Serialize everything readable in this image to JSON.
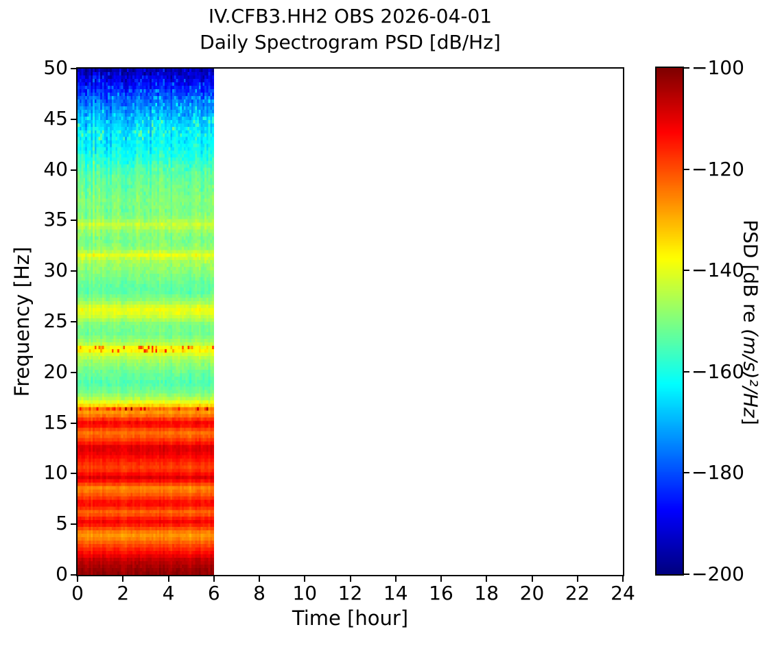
{
  "chart_data": {
    "type": "heatmap",
    "subtype": "spectrogram",
    "title_line1": "IV.CFB3.HH2 OBS 2026-04-01",
    "title_line2": "Daily Spectrogram PSD [dB/Hz]",
    "xlabel": "Time [hour]",
    "ylabel": "Frequency [Hz]",
    "xlim": [
      0,
      24
    ],
    "ylim": [
      0,
      50
    ],
    "xticks": [
      0,
      2,
      4,
      6,
      8,
      10,
      12,
      14,
      16,
      18,
      20,
      22,
      24
    ],
    "yticks": [
      0,
      5,
      10,
      15,
      20,
      25,
      30,
      35,
      40,
      45,
      50
    ],
    "grid": false,
    "colormap": "jet",
    "data_coverage_hours": [
      0,
      6
    ],
    "no_data_hours": [
      6,
      24
    ],
    "time_columns": 72,
    "freq_rows": 148,
    "colorbar": {
      "label_prefix": "PSD [dB re ",
      "label_math": "(m/s)²/Hz",
      "label_suffix": "]",
      "vmin": -200,
      "vmax": -100,
      "ticks": [
        -100,
        -120,
        -140,
        -160,
        -180,
        -200
      ]
    },
    "psd_profile": {
      "description": "Mean PSD [dB] vs frequency [Hz] of the 0-6 h data block, estimated from the colors",
      "freq_hz": [
        0,
        0.5,
        1,
        1.5,
        2,
        2.5,
        3,
        3.5,
        4,
        4.5,
        5,
        5.3,
        5.8,
        6.2,
        6.7,
        7.1,
        7.6,
        8.1,
        8.6,
        9.1,
        9.6,
        10,
        10.5,
        11,
        11.5,
        12,
        12.6,
        13.1,
        13.6,
        14.1,
        14.6,
        14.9,
        15.3,
        15.7,
        16.1,
        16.4,
        16.8,
        17.3,
        18,
        19,
        20,
        21,
        21.7,
        22.3,
        22.9,
        23.8,
        24.8,
        25.7,
        26.3,
        27,
        28,
        29,
        30,
        31,
        31.6,
        32.2,
        33,
        34,
        34.6,
        35.2,
        36,
        37,
        38,
        39,
        40,
        41,
        42,
        43,
        44,
        45,
        46,
        47,
        48,
        49,
        50
      ],
      "psd_db": [
        -102,
        -103,
        -105,
        -107,
        -112,
        -116,
        -120,
        -125,
        -128,
        -121,
        -114,
        -112,
        -119,
        -123,
        -116,
        -112,
        -118,
        -123,
        -126,
        -117,
        -109,
        -114,
        -119,
        -117,
        -114,
        -111,
        -109,
        -116,
        -121,
        -124,
        -116,
        -111,
        -117,
        -124,
        -128,
        -124,
        -136,
        -144,
        -151,
        -155,
        -152,
        -148,
        -143,
        -136,
        -146,
        -152,
        -150,
        -141,
        -139,
        -148,
        -154,
        -152,
        -149,
        -146,
        -140,
        -148,
        -151,
        -148,
        -143,
        -149,
        -151,
        -150,
        -152,
        -153,
        -155,
        -159,
        -162,
        -164,
        -165,
        -169,
        -174,
        -179,
        -185,
        -191,
        -197
      ]
    },
    "hot_speckle_bands_hz": [
      16.35,
      22.35
    ],
    "noise_seed": 42,
    "colors": {
      "background": "#ffffff",
      "axes": "#000000",
      "text": "#000000"
    }
  }
}
